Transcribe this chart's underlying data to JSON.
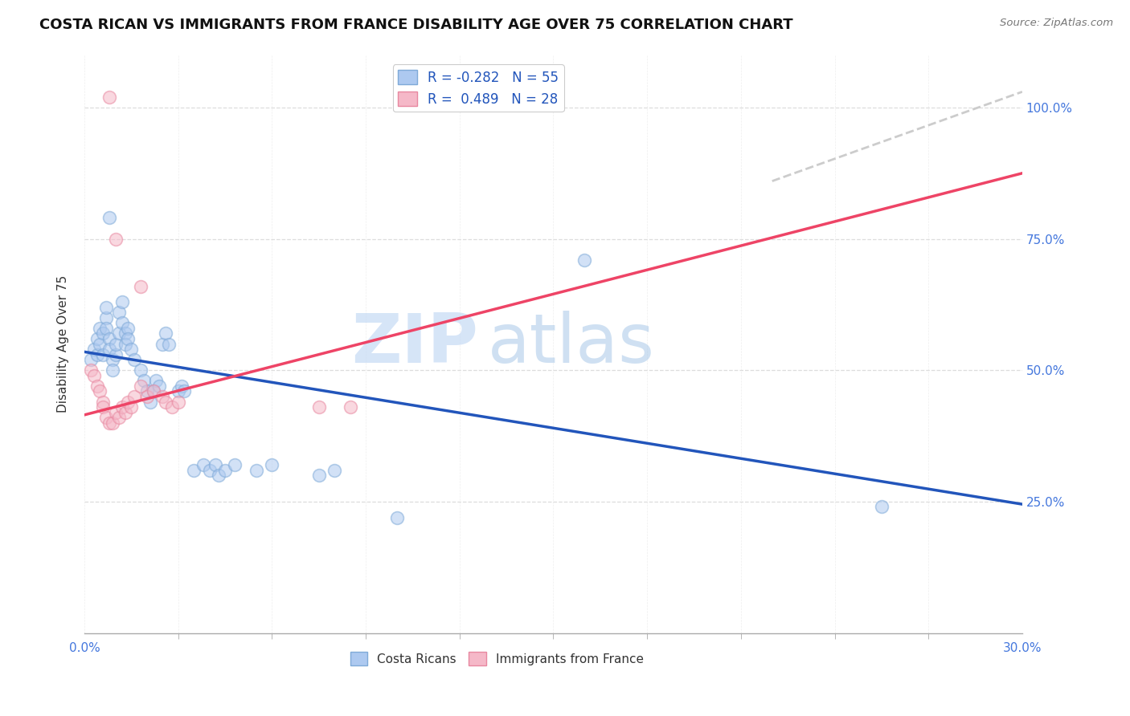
{
  "title": "COSTA RICAN VS IMMIGRANTS FROM FRANCE DISABILITY AGE OVER 75 CORRELATION CHART",
  "source": "Source: ZipAtlas.com",
  "ylabel": "Disability Age Over 75",
  "xlim": [
    0.0,
    0.3
  ],
  "ylim": [
    0.0,
    1.1
  ],
  "watermark_zip": "ZIP",
  "watermark_atlas": "atlas",
  "blue_scatter": [
    [
      0.002,
      0.52
    ],
    [
      0.003,
      0.54
    ],
    [
      0.004,
      0.53
    ],
    [
      0.004,
      0.56
    ],
    [
      0.005,
      0.58
    ],
    [
      0.005,
      0.55
    ],
    [
      0.006,
      0.57
    ],
    [
      0.006,
      0.53
    ],
    [
      0.007,
      0.6
    ],
    [
      0.007,
      0.62
    ],
    [
      0.007,
      0.58
    ],
    [
      0.008,
      0.56
    ],
    [
      0.008,
      0.54
    ],
    [
      0.009,
      0.52
    ],
    [
      0.009,
      0.5
    ],
    [
      0.01,
      0.53
    ],
    [
      0.01,
      0.55
    ],
    [
      0.011,
      0.57
    ],
    [
      0.011,
      0.61
    ],
    [
      0.012,
      0.63
    ],
    [
      0.012,
      0.59
    ],
    [
      0.013,
      0.57
    ],
    [
      0.013,
      0.55
    ],
    [
      0.014,
      0.58
    ],
    [
      0.014,
      0.56
    ],
    [
      0.015,
      0.54
    ],
    [
      0.016,
      0.52
    ],
    [
      0.018,
      0.5
    ],
    [
      0.019,
      0.48
    ],
    [
      0.02,
      0.46
    ],
    [
      0.021,
      0.44
    ],
    [
      0.022,
      0.46
    ],
    [
      0.023,
      0.48
    ],
    [
      0.024,
      0.47
    ],
    [
      0.025,
      0.55
    ],
    [
      0.026,
      0.57
    ],
    [
      0.027,
      0.55
    ],
    [
      0.03,
      0.46
    ],
    [
      0.031,
      0.47
    ],
    [
      0.032,
      0.46
    ],
    [
      0.035,
      0.31
    ],
    [
      0.038,
      0.32
    ],
    [
      0.04,
      0.31
    ],
    [
      0.042,
      0.32
    ],
    [
      0.043,
      0.3
    ],
    [
      0.045,
      0.31
    ],
    [
      0.048,
      0.32
    ],
    [
      0.055,
      0.31
    ],
    [
      0.06,
      0.32
    ],
    [
      0.075,
      0.3
    ],
    [
      0.08,
      0.31
    ],
    [
      0.1,
      0.22
    ],
    [
      0.16,
      0.71
    ],
    [
      0.255,
      0.24
    ],
    [
      0.008,
      0.79
    ]
  ],
  "pink_scatter": [
    [
      0.002,
      0.5
    ],
    [
      0.003,
      0.49
    ],
    [
      0.004,
      0.47
    ],
    [
      0.005,
      0.46
    ],
    [
      0.006,
      0.44
    ],
    [
      0.006,
      0.43
    ],
    [
      0.007,
      0.41
    ],
    [
      0.008,
      0.4
    ],
    [
      0.009,
      0.4
    ],
    [
      0.01,
      0.42
    ],
    [
      0.011,
      0.41
    ],
    [
      0.012,
      0.43
    ],
    [
      0.013,
      0.42
    ],
    [
      0.014,
      0.44
    ],
    [
      0.015,
      0.43
    ],
    [
      0.016,
      0.45
    ],
    [
      0.018,
      0.47
    ],
    [
      0.02,
      0.45
    ],
    [
      0.022,
      0.46
    ],
    [
      0.025,
      0.45
    ],
    [
      0.026,
      0.44
    ],
    [
      0.028,
      0.43
    ],
    [
      0.03,
      0.44
    ],
    [
      0.075,
      0.43
    ],
    [
      0.085,
      0.43
    ],
    [
      0.01,
      0.75
    ],
    [
      0.018,
      0.66
    ],
    [
      0.008,
      1.02
    ]
  ],
  "blue_line_x": [
    0.0,
    0.3
  ],
  "blue_line_y": [
    0.535,
    0.245
  ],
  "pink_line_x": [
    0.0,
    0.3
  ],
  "pink_line_y": [
    0.415,
    0.875
  ],
  "gray_line_x": [
    0.22,
    0.3
  ],
  "gray_line_y": [
    0.86,
    1.03
  ],
  "scatter_size": 130,
  "scatter_alpha": 0.55,
  "scatter_lw": 1.2,
  "blue_color": "#adc9f0",
  "pink_color": "#f5b8c8",
  "blue_edge": "#7faad8",
  "pink_edge": "#e888a0",
  "line_blue": "#2255bb",
  "line_pink": "#ee4466",
  "line_gray": "#cccccc",
  "background": "#ffffff",
  "grid_color": "#dddddd",
  "title_fontsize": 13,
  "axis_fontsize": 11,
  "tick_fontsize": 11,
  "right_tick_color": "#4477dd",
  "xtick_minor_count": 10,
  "legend_r_color": "#2255bb",
  "legend_n_color": "#2255bb"
}
